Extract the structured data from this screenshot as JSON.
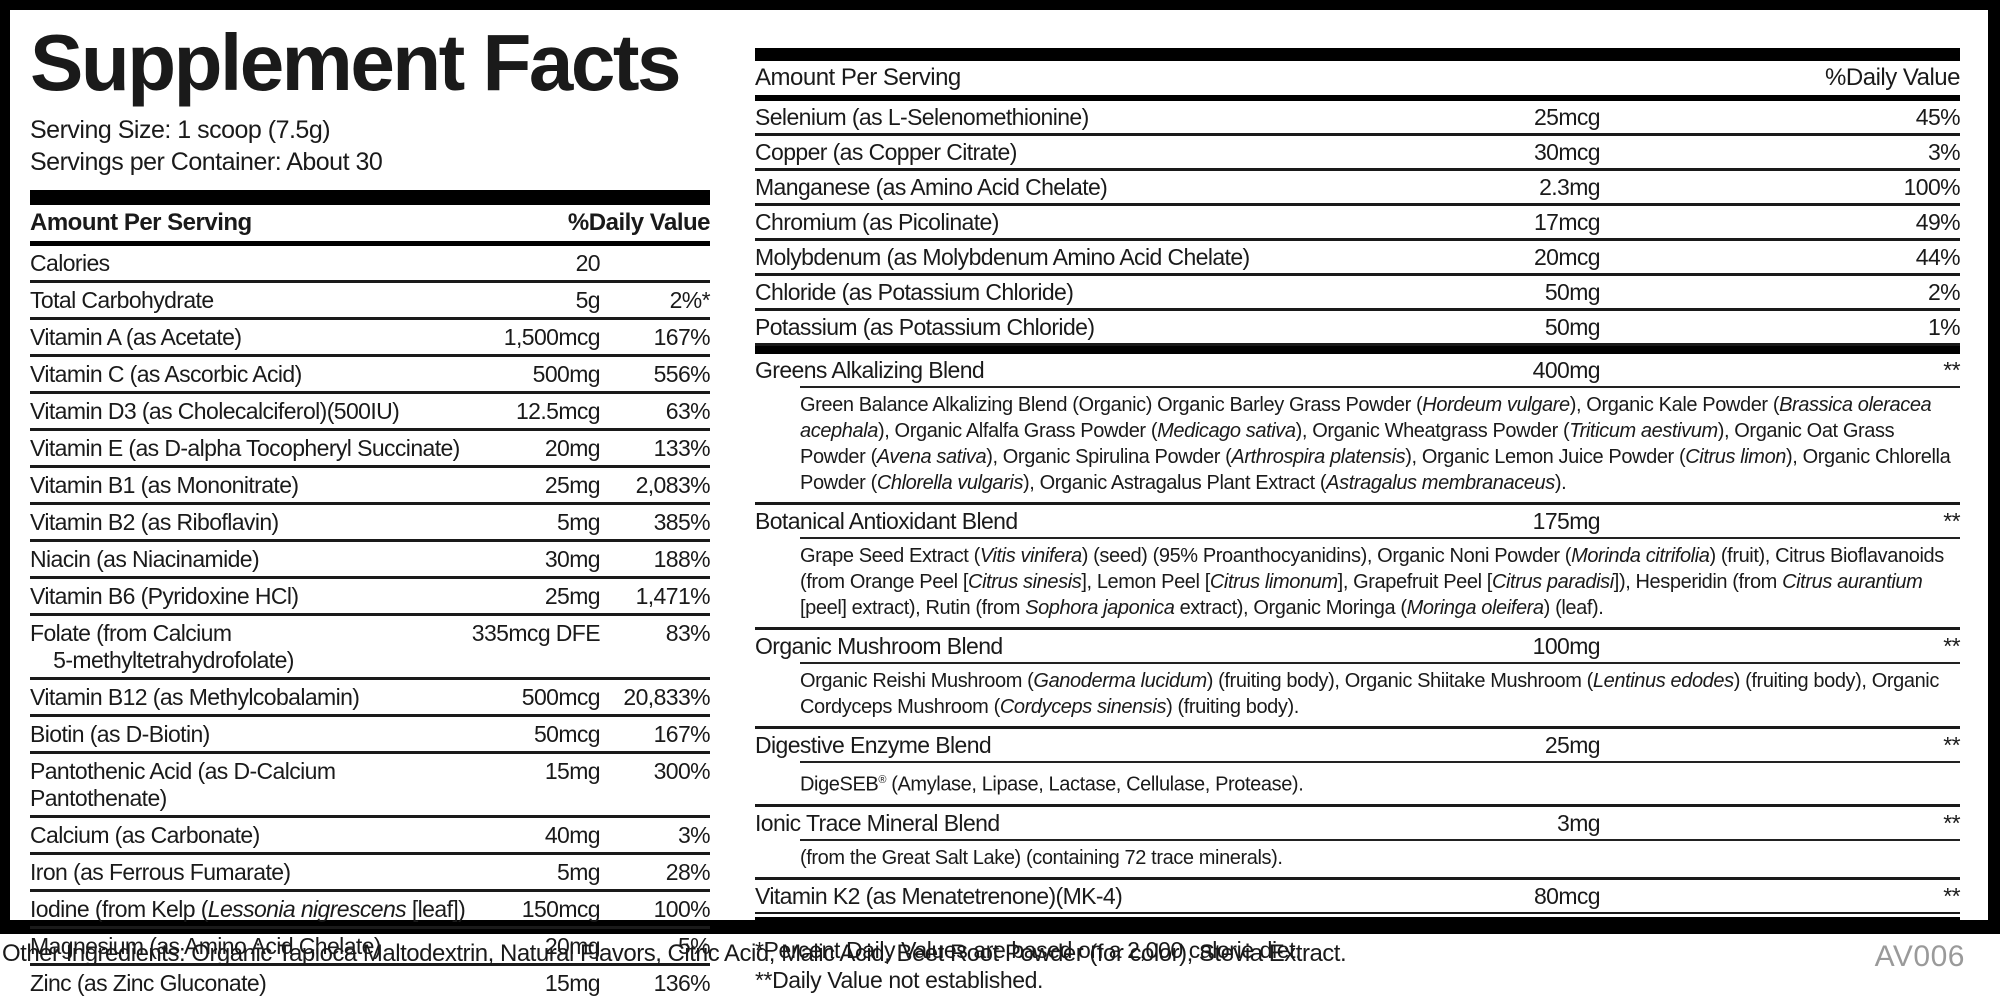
{
  "title": "Supplement Facts",
  "serving": {
    "size": "Serving Size: 1 scoop (7.5g)",
    "per_container": "Servings per Container: About 30"
  },
  "colors": {
    "text": "#1a1a1a",
    "bars": "#000000",
    "code_gray": "#9a9a9a"
  },
  "left_table": {
    "header": {
      "amount": "Amount Per Serving",
      "dv": "%Daily Value"
    },
    "rows": [
      {
        "name": "Calories",
        "amount": "20",
        "dv": ""
      },
      {
        "name": "Total Carbohydrate",
        "amount": "5g",
        "dv": "2%*"
      },
      {
        "name": "Vitamin A (as Acetate)",
        "amount": "1,500mcg",
        "dv": "167%"
      },
      {
        "name": "Vitamin C (as Ascorbic Acid)",
        "amount": "500mg",
        "dv": "556%"
      },
      {
        "name": "Vitamin D3 (as Cholecalciferol)(500IU)",
        "amount": "12.5mcg",
        "dv": "63%"
      },
      {
        "name": "Vitamin E (as D-alpha Tocopheryl Succinate)",
        "amount": "20mg",
        "dv": "133%"
      },
      {
        "name": "Vitamin B1 (as Mononitrate)",
        "amount": "25mg",
        "dv": "2,083%"
      },
      {
        "name": "Vitamin B2 (as Riboflavin)",
        "amount": "5mg",
        "dv": "385%"
      },
      {
        "name": "Niacin (as Niacinamide)",
        "amount": "30mg",
        "dv": "188%"
      },
      {
        "name": "Vitamin B6 (Pyridoxine HCl)",
        "amount": "25mg",
        "dv": "1,471%"
      },
      {
        "name": "Folate (from Calcium<br>&nbsp;&nbsp;&nbsp;&nbsp;5-methyltetrahydrofolate)",
        "amount": "335mcg DFE",
        "dv": "83%"
      },
      {
        "name": "Vitamin B12 (as Methylcobalamin)",
        "amount": "500mcg",
        "dv": "20,833%"
      },
      {
        "name": "Biotin (as D-Biotin)",
        "amount": "50mcg",
        "dv": "167%"
      },
      {
        "name": "Pantothenic Acid (as D-Calcium Pantothenate)",
        "amount": "15mg",
        "dv": "300%"
      },
      {
        "name": "Calcium (as Carbonate)",
        "amount": "40mg",
        "dv": "3%"
      },
      {
        "name": "Iron (as Ferrous Fumarate)",
        "amount": "5mg",
        "dv": "28%"
      },
      {
        "name": "Iodine (from Kelp (<i>Lessonia nigrescens</i> [leaf])",
        "amount": "150mcg",
        "dv": "100%"
      },
      {
        "name": "Magnesium (as Amino Acid Chelate)",
        "amount": "20mg",
        "dv": "5%"
      },
      {
        "name": "Zinc (as Zinc Gluconate)",
        "amount": "15mg",
        "dv": "136%"
      }
    ]
  },
  "right_table": {
    "header": {
      "amount": "Amount Per Serving",
      "dv": "%Daily Value"
    },
    "rows": [
      {
        "name": "Selenium (as L-Selenomethionine)",
        "amount": "25mcg",
        "dv": "45%"
      },
      {
        "name": "Copper (as Copper Citrate)",
        "amount": "30mcg",
        "dv": "3%"
      },
      {
        "name": "Manganese (as Amino Acid Chelate)",
        "amount": "2.3mg",
        "dv": "100%"
      },
      {
        "name": "Chromium (as Picolinate)",
        "amount": "17mcg",
        "dv": "49%"
      },
      {
        "name": "Molybdenum (as Molybdenum Amino Acid Chelate)",
        "amount": "20mcg",
        "dv": "44%"
      },
      {
        "name": "Chloride (as Potassium Chloride)",
        "amount": "50mg",
        "dv": "2%"
      },
      {
        "name": "Potassium (as Potassium Chloride)",
        "amount": "50mg",
        "dv": "1%"
      }
    ],
    "blends": [
      {
        "name": "Greens Alkalizing Blend",
        "amount": "400mg",
        "dv": "**",
        "desc": "Green Balance Alkalizing Blend (Organic) Organic Barley Grass Powder (<i>Hordeum vulgare</i>), Organic Kale Powder (<i>Brassica oleracea acephala</i>), Organic Alfalfa Grass Powder (<i>Medicago sativa</i>), Organic Wheatgrass Powder (<i>Triticum aestivum</i>), Organic Oat Grass Powder (<i>Avena sativa</i>), Organic Spirulina Powder (<i>Arthrospira platensis</i>), Organic Lemon Juice Powder (<i>Citrus limon</i>), Organic Chlorella Powder (<i>Chlorella vulgaris</i>), Organic Astragalus Plant Extract (<i>Astragalus membranaceus</i>)."
      },
      {
        "name": "Botanical Antioxidant Blend",
        "amount": "175mg",
        "dv": "**",
        "desc": "Grape Seed Extract (<i>Vitis vinifera</i>) (seed) (95% Proanthocyanidins), Organic Noni Powder (<i>Morinda citrifolia</i>) (fruit), Citrus Bioflavanoids (from Orange Peel [<i>Citrus sinesis</i>], Lemon Peel [<i>Citrus limonum</i>], Grapefruit Peel [<i>Citrus paradisi</i>]), Hesperidin (from <i>Citrus aurantium</i> [peel] extract), Rutin (from <i>Sophora japonica</i> extract), Organic Moringa (<i>Moringa oleifera</i>) (leaf)."
      },
      {
        "name": "Organic Mushroom Blend",
        "amount": "100mg",
        "dv": "**",
        "desc": "Organic Reishi Mushroom (<i>Ganoderma lucidum</i>) (fruiting body), Organic Shiitake Mushroom (<i>Lentinus edodes</i>) (fruiting body), Organic Cordyceps Mushroom (<i>Cordyceps sinensis</i>) (fruiting body)."
      },
      {
        "name": "Digestive Enzyme Blend",
        "amount": "25mg",
        "dv": "**",
        "desc": "DigeSEB<sup>&#174;</sup> (Amylase, Lipase, Lactase, Cellulase, Protease)."
      },
      {
        "name": "Ionic Trace Mineral Blend",
        "amount": "3mg",
        "dv": "**",
        "desc": "(from the Great Salt Lake) (containing 72 trace minerals)."
      },
      {
        "name": "Vitamin K2 (as Menatetrenone)(MK-4)",
        "amount": "80mcg",
        "dv": "**",
        "desc": ""
      }
    ]
  },
  "footnotes": [
    "*Percent Daily Values are based on a 2,000 calorie diet.",
    "**Daily Value not established."
  ],
  "footer": {
    "other_ingredients": "Other Ingredients: Organic Tapioca Maltodextrin, Natural Flavors, Citric Acid, Malic Acid, Beet Root Powder (for color), Stevia Extract.",
    "code": "AV006"
  }
}
